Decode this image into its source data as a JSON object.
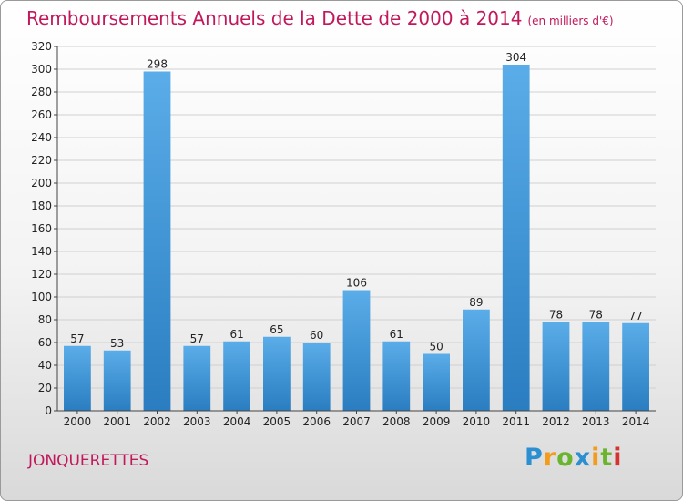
{
  "chart_data": {
    "type": "bar",
    "title": "Remboursements Annuels de la Dette de 2000 à 2014",
    "unit": "(en milliers d'€)",
    "categories": [
      "2000",
      "2001",
      "2002",
      "2003",
      "2004",
      "2005",
      "2006",
      "2007",
      "2008",
      "2009",
      "2010",
      "2011",
      "2012",
      "2013",
      "2014"
    ],
    "values": [
      57,
      53,
      298,
      57,
      61,
      65,
      60,
      106,
      61,
      50,
      89,
      304,
      78,
      78,
      77
    ],
    "xlabel": "",
    "ylabel": "",
    "ylim": [
      0,
      320
    ],
    "yticks": [
      0,
      20,
      40,
      60,
      80,
      100,
      120,
      140,
      160,
      180,
      200,
      220,
      240,
      260,
      280,
      300,
      320
    ],
    "grid": true,
    "bar_color": "#3d95d9"
  },
  "town": "JONQUERETTES",
  "logo": {
    "letters": [
      "P",
      "r",
      "o",
      "x",
      "i",
      "t",
      "i"
    ],
    "colors": [
      "#2b8fd1",
      "#f29b1d",
      "#6bb52e",
      "#2b8fd1",
      "#f29b1d",
      "#6bb52e",
      "#d6332f"
    ]
  }
}
